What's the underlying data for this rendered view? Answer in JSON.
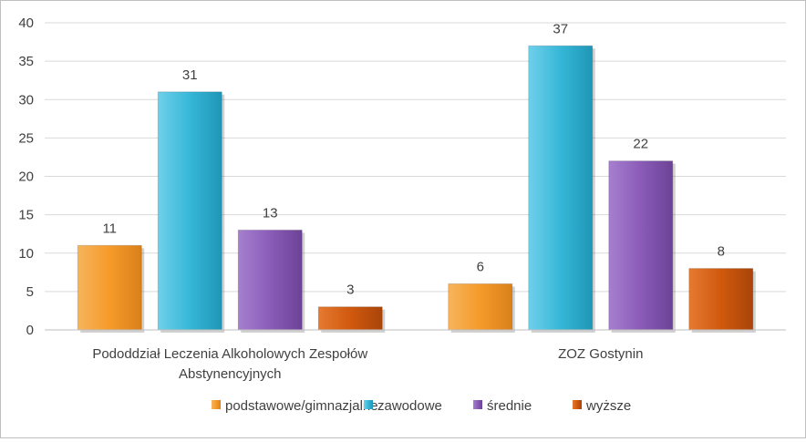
{
  "chart_data": {
    "type": "bar",
    "categories": [
      [
        "Pododdział Leczenia Alkoholowych Zespołów",
        "Abstynencyjnych"
      ],
      [
        "ZOZ Gostynin"
      ]
    ],
    "series": [
      {
        "name": "podstawowe/gimnazjalne",
        "values": [
          11,
          6
        ],
        "color": "#f59a2a"
      },
      {
        "name": "zawodowe",
        "values": [
          31,
          37
        ],
        "color": "#36b7d8"
      },
      {
        "name": "średnie",
        "values": [
          13,
          22
        ],
        "color": "#8a5cb8"
      },
      {
        "name": "wyższe",
        "values": [
          3,
          8
        ],
        "color": "#d0590e"
      }
    ],
    "ylim": [
      0,
      40
    ],
    "yticks": [
      0,
      5,
      10,
      15,
      20,
      25,
      30,
      35,
      40
    ],
    "grid": true,
    "legend_position": "bottom",
    "data_labels": true
  }
}
